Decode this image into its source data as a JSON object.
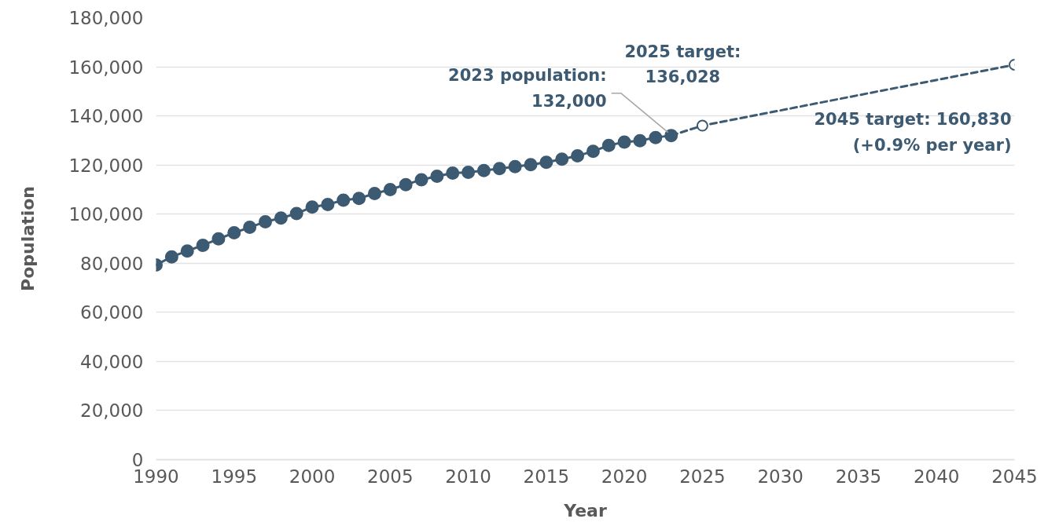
{
  "chart_data": {
    "type": "line",
    "xlabel": "Year",
    "ylabel": "Population",
    "xlim": [
      1990,
      2045
    ],
    "xticks": [
      1990,
      1995,
      2000,
      2005,
      2010,
      2015,
      2020,
      2025,
      2030,
      2035,
      2040,
      2045
    ],
    "ylim": [
      0,
      180000
    ],
    "yticks": [
      0,
      {
        "value": 20000,
        "label": "20,000"
      },
      {
        "value": 40000,
        "label": "40,000"
      },
      {
        "value": 60000,
        "label": "60,000"
      },
      {
        "value": 80000,
        "label": "80,000"
      },
      {
        "value": 100000,
        "label": "100,000"
      },
      {
        "value": 120000,
        "label": "120,000"
      },
      {
        "value": 140000,
        "label": "140,000"
      },
      {
        "value": 160000,
        "label": "160,000"
      },
      {
        "value": 180000,
        "label": "180,000"
      }
    ],
    "grid": "y",
    "marker": "circle",
    "series": [
      {
        "color": "#3d5a73",
        "line_style": "dashed",
        "x": [
          2023,
          2025,
          2045
        ],
        "values": [
          132000,
          136028,
          160830
        ]
      },
      {
        "color": "#3d5a73",
        "line_style": "solid",
        "x": [
          1990,
          1991,
          1992,
          1993,
          1994,
          1995,
          1996,
          1997,
          1998,
          1999,
          2000,
          2001,
          2002,
          2003,
          2004,
          2005,
          2006,
          2007,
          2008,
          2009,
          2010,
          2011,
          2012,
          2013,
          2014,
          2015,
          2016,
          2017,
          2018,
          2019,
          2020,
          2021,
          2022,
          2023
        ],
        "values": [
          79300,
          82600,
          85000,
          87300,
          89900,
          92400,
          94600,
          96900,
          98400,
          100200,
          102900,
          103900,
          105700,
          106400,
          108400,
          110000,
          112000,
          114000,
          115400,
          116700,
          117000,
          117700,
          118500,
          119300,
          120100,
          121100,
          122400,
          123700,
          125600,
          128000,
          129300,
          129900,
          131200,
          132000
        ]
      }
    ],
    "annotations": [
      {
        "text": "2023 population:\n132,000",
        "x": 2023,
        "y": 132000
      },
      {
        "text": "2025 target:\n136,028",
        "x": 2025,
        "y": 136028
      },
      {
        "text": "2045 target: 160,830\n(+0.9% per year)",
        "x": 2045,
        "y": 160830
      }
    ]
  }
}
